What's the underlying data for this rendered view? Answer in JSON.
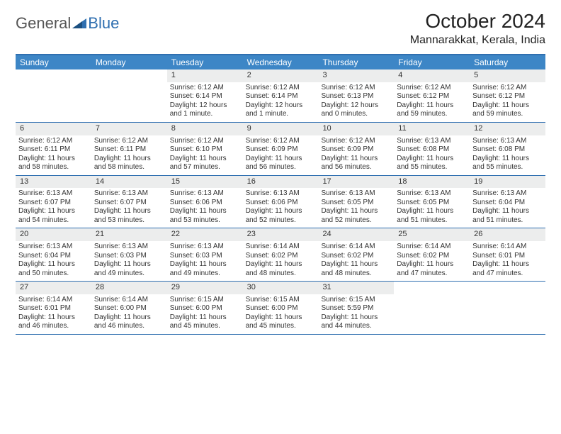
{
  "logo": {
    "text1": "General",
    "text2": "Blue"
  },
  "title": "October 2024",
  "location": "Mannarakkat, Kerala, India",
  "colors": {
    "header_bg": "#3d86c6",
    "header_text": "#ffffff",
    "border": "#2f6fb0",
    "daynum_bg": "#eceded",
    "body_text": "#333333",
    "logo_gray": "#555555",
    "logo_blue": "#2f6fb0"
  },
  "weekdays": [
    "Sunday",
    "Monday",
    "Tuesday",
    "Wednesday",
    "Thursday",
    "Friday",
    "Saturday"
  ],
  "weeks": [
    [
      {
        "n": "",
        "sr": "",
        "ss": "",
        "dl": ""
      },
      {
        "n": "",
        "sr": "",
        "ss": "",
        "dl": ""
      },
      {
        "n": "1",
        "sr": "Sunrise: 6:12 AM",
        "ss": "Sunset: 6:14 PM",
        "dl": "Daylight: 12 hours and 1 minute."
      },
      {
        "n": "2",
        "sr": "Sunrise: 6:12 AM",
        "ss": "Sunset: 6:14 PM",
        "dl": "Daylight: 12 hours and 1 minute."
      },
      {
        "n": "3",
        "sr": "Sunrise: 6:12 AM",
        "ss": "Sunset: 6:13 PM",
        "dl": "Daylight: 12 hours and 0 minutes."
      },
      {
        "n": "4",
        "sr": "Sunrise: 6:12 AM",
        "ss": "Sunset: 6:12 PM",
        "dl": "Daylight: 11 hours and 59 minutes."
      },
      {
        "n": "5",
        "sr": "Sunrise: 6:12 AM",
        "ss": "Sunset: 6:12 PM",
        "dl": "Daylight: 11 hours and 59 minutes."
      }
    ],
    [
      {
        "n": "6",
        "sr": "Sunrise: 6:12 AM",
        "ss": "Sunset: 6:11 PM",
        "dl": "Daylight: 11 hours and 58 minutes."
      },
      {
        "n": "7",
        "sr": "Sunrise: 6:12 AM",
        "ss": "Sunset: 6:11 PM",
        "dl": "Daylight: 11 hours and 58 minutes."
      },
      {
        "n": "8",
        "sr": "Sunrise: 6:12 AM",
        "ss": "Sunset: 6:10 PM",
        "dl": "Daylight: 11 hours and 57 minutes."
      },
      {
        "n": "9",
        "sr": "Sunrise: 6:12 AM",
        "ss": "Sunset: 6:09 PM",
        "dl": "Daylight: 11 hours and 56 minutes."
      },
      {
        "n": "10",
        "sr": "Sunrise: 6:12 AM",
        "ss": "Sunset: 6:09 PM",
        "dl": "Daylight: 11 hours and 56 minutes."
      },
      {
        "n": "11",
        "sr": "Sunrise: 6:13 AM",
        "ss": "Sunset: 6:08 PM",
        "dl": "Daylight: 11 hours and 55 minutes."
      },
      {
        "n": "12",
        "sr": "Sunrise: 6:13 AM",
        "ss": "Sunset: 6:08 PM",
        "dl": "Daylight: 11 hours and 55 minutes."
      }
    ],
    [
      {
        "n": "13",
        "sr": "Sunrise: 6:13 AM",
        "ss": "Sunset: 6:07 PM",
        "dl": "Daylight: 11 hours and 54 minutes."
      },
      {
        "n": "14",
        "sr": "Sunrise: 6:13 AM",
        "ss": "Sunset: 6:07 PM",
        "dl": "Daylight: 11 hours and 53 minutes."
      },
      {
        "n": "15",
        "sr": "Sunrise: 6:13 AM",
        "ss": "Sunset: 6:06 PM",
        "dl": "Daylight: 11 hours and 53 minutes."
      },
      {
        "n": "16",
        "sr": "Sunrise: 6:13 AM",
        "ss": "Sunset: 6:06 PM",
        "dl": "Daylight: 11 hours and 52 minutes."
      },
      {
        "n": "17",
        "sr": "Sunrise: 6:13 AM",
        "ss": "Sunset: 6:05 PM",
        "dl": "Daylight: 11 hours and 52 minutes."
      },
      {
        "n": "18",
        "sr": "Sunrise: 6:13 AM",
        "ss": "Sunset: 6:05 PM",
        "dl": "Daylight: 11 hours and 51 minutes."
      },
      {
        "n": "19",
        "sr": "Sunrise: 6:13 AM",
        "ss": "Sunset: 6:04 PM",
        "dl": "Daylight: 11 hours and 51 minutes."
      }
    ],
    [
      {
        "n": "20",
        "sr": "Sunrise: 6:13 AM",
        "ss": "Sunset: 6:04 PM",
        "dl": "Daylight: 11 hours and 50 minutes."
      },
      {
        "n": "21",
        "sr": "Sunrise: 6:13 AM",
        "ss": "Sunset: 6:03 PM",
        "dl": "Daylight: 11 hours and 49 minutes."
      },
      {
        "n": "22",
        "sr": "Sunrise: 6:13 AM",
        "ss": "Sunset: 6:03 PM",
        "dl": "Daylight: 11 hours and 49 minutes."
      },
      {
        "n": "23",
        "sr": "Sunrise: 6:14 AM",
        "ss": "Sunset: 6:02 PM",
        "dl": "Daylight: 11 hours and 48 minutes."
      },
      {
        "n": "24",
        "sr": "Sunrise: 6:14 AM",
        "ss": "Sunset: 6:02 PM",
        "dl": "Daylight: 11 hours and 48 minutes."
      },
      {
        "n": "25",
        "sr": "Sunrise: 6:14 AM",
        "ss": "Sunset: 6:02 PM",
        "dl": "Daylight: 11 hours and 47 minutes."
      },
      {
        "n": "26",
        "sr": "Sunrise: 6:14 AM",
        "ss": "Sunset: 6:01 PM",
        "dl": "Daylight: 11 hours and 47 minutes."
      }
    ],
    [
      {
        "n": "27",
        "sr": "Sunrise: 6:14 AM",
        "ss": "Sunset: 6:01 PM",
        "dl": "Daylight: 11 hours and 46 minutes."
      },
      {
        "n": "28",
        "sr": "Sunrise: 6:14 AM",
        "ss": "Sunset: 6:00 PM",
        "dl": "Daylight: 11 hours and 46 minutes."
      },
      {
        "n": "29",
        "sr": "Sunrise: 6:15 AM",
        "ss": "Sunset: 6:00 PM",
        "dl": "Daylight: 11 hours and 45 minutes."
      },
      {
        "n": "30",
        "sr": "Sunrise: 6:15 AM",
        "ss": "Sunset: 6:00 PM",
        "dl": "Daylight: 11 hours and 45 minutes."
      },
      {
        "n": "31",
        "sr": "Sunrise: 6:15 AM",
        "ss": "Sunset: 5:59 PM",
        "dl": "Daylight: 11 hours and 44 minutes."
      },
      {
        "n": "",
        "sr": "",
        "ss": "",
        "dl": ""
      },
      {
        "n": "",
        "sr": "",
        "ss": "",
        "dl": ""
      }
    ]
  ]
}
